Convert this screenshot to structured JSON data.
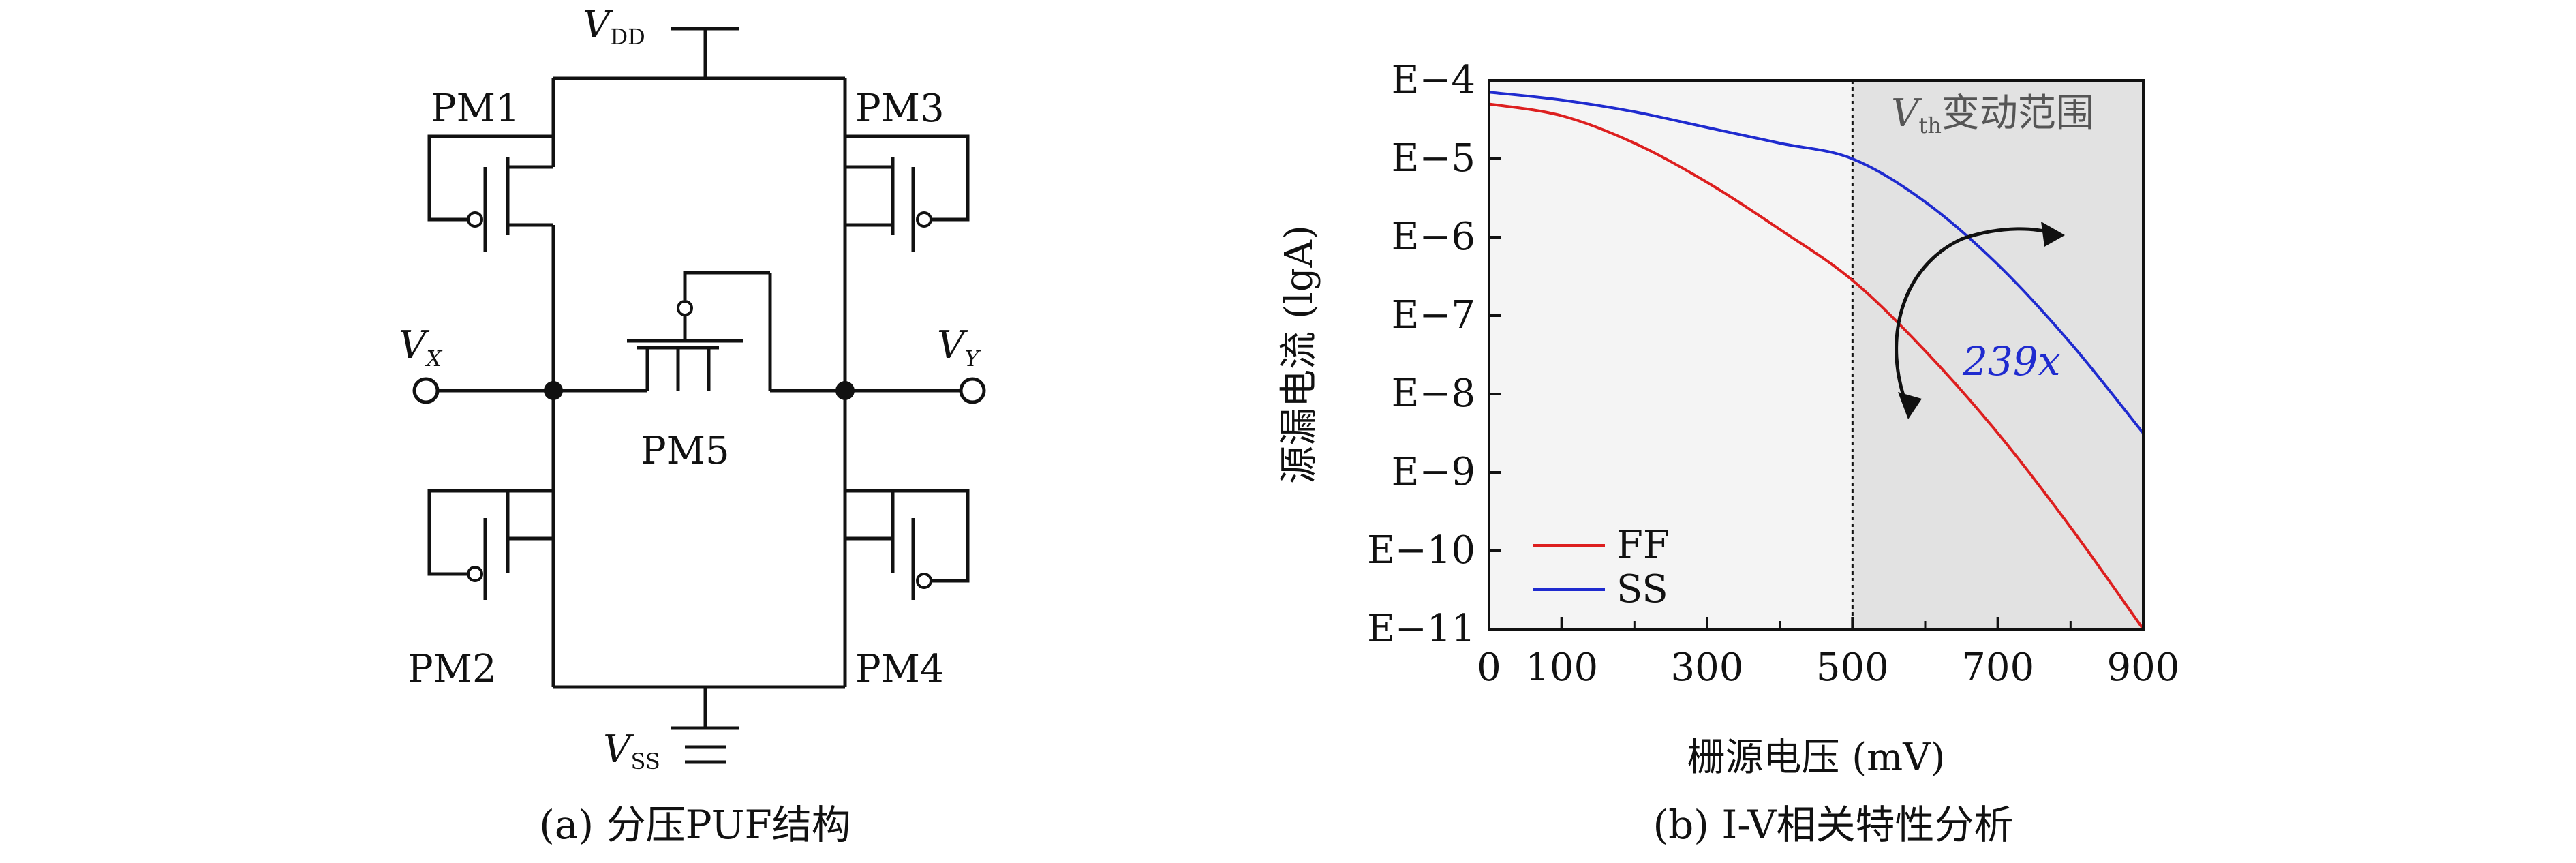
{
  "panel_a": {
    "caption": "(a) 分压PUF结构",
    "vdd": "V",
    "vdd_sub": "DD",
    "vss": "V",
    "vss_sub": "SS",
    "vx": "V",
    "vx_sub": "X",
    "vy": "V",
    "vy_sub": "Y",
    "transistors": [
      "PM1",
      "PM2",
      "PM3",
      "PM4",
      "PM5"
    ]
  },
  "panel_b": {
    "caption": "(b) I-V相关特性分析",
    "xlabel": "栅源电压 (mV)",
    "ylabel": "源漏电流 (lgA)",
    "region_label_v": "V",
    "region_label_sub": "th",
    "region_label_text": "变动范围",
    "ratio_label": "239x",
    "colors": {
      "FF": "#dd1f1f",
      "SS": "#1f2bcf",
      "region": "#e2e2e2",
      "plot_bg": "#f4f4f4"
    }
  },
  "chart_data": {
    "type": "line",
    "xlabel": "栅源电压 (mV)",
    "ylabel": "源漏电流 (lgA)",
    "x_ticks": [
      0,
      100,
      300,
      500,
      700,
      900
    ],
    "x_minor_ticks": [
      200,
      400,
      600,
      800
    ],
    "xlim": [
      0,
      900
    ],
    "y_ticks": [
      -4,
      -5,
      -6,
      -7,
      -8,
      -9,
      -10,
      -11
    ],
    "y_tick_labels": [
      "E−4",
      "E−5",
      "E−6",
      "E−7",
      "E−8",
      "E−9",
      "E−10",
      "E−11"
    ],
    "ylim": [
      -11,
      -4
    ],
    "legend_placement": "bottom-left",
    "shaded_region_x": [
      500,
      900
    ],
    "vline_x": 500,
    "x": [
      0,
      100,
      200,
      300,
      400,
      500,
      600,
      700,
      800,
      900
    ],
    "series": [
      {
        "name": "FF",
        "values": [
          -4.3,
          -4.45,
          -4.8,
          -5.3,
          -5.9,
          -6.55,
          -7.45,
          -8.5,
          -9.7,
          -11.0
        ]
      },
      {
        "name": "SS",
        "values": [
          -4.15,
          -4.25,
          -4.4,
          -4.6,
          -4.8,
          -5.0,
          -5.55,
          -6.35,
          -7.35,
          -8.5
        ]
      }
    ]
  }
}
